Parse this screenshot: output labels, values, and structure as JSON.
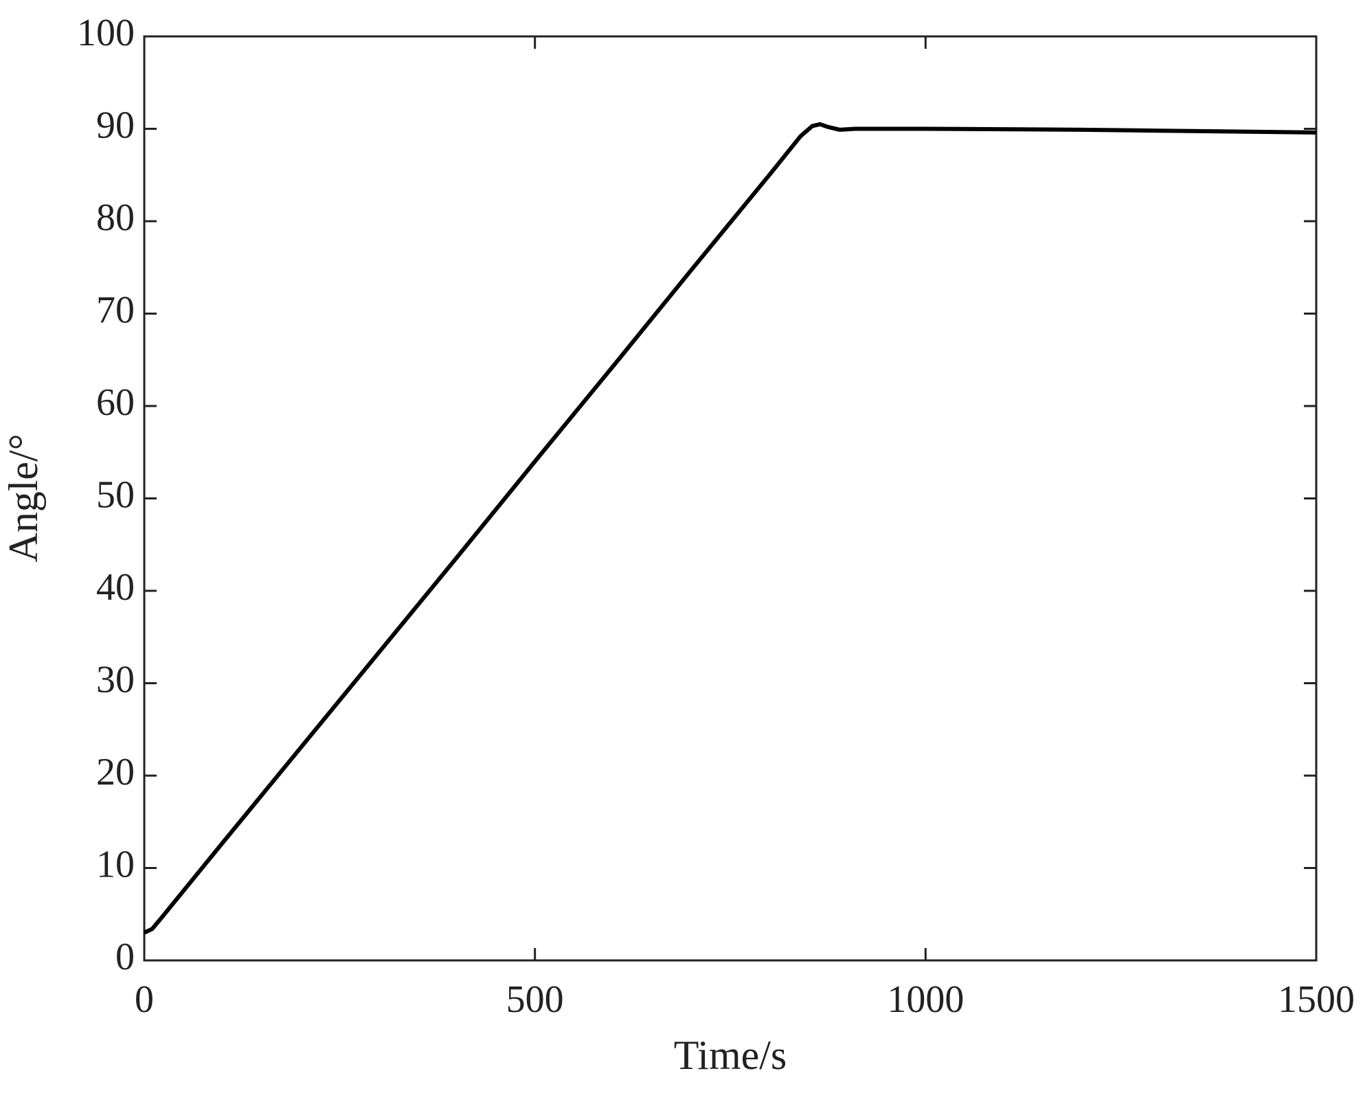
{
  "chart_data": {
    "type": "line",
    "x_label": "Time/s",
    "y_label": "Angle/°",
    "x": [
      0,
      10,
      20,
      100,
      200,
      300,
      400,
      500,
      600,
      700,
      800,
      840,
      855,
      865,
      875,
      890,
      910,
      950,
      1000,
      1200,
      1300,
      1500
    ],
    "series": [
      {
        "color": "#000000",
        "values": [
          3,
          3.4,
          4.4,
          12.7,
          23,
          33.3,
          43.6,
          54,
          64.3,
          74.7,
          85,
          89.2,
          90.3,
          90.5,
          90.2,
          89.9,
          90,
          90,
          90,
          89.9,
          89.8,
          89.6
        ]
      }
    ],
    "xlim": [
      0,
      1500
    ],
    "xticks": [
      0,
      500,
      1000,
      1500
    ],
    "ylim": [
      0,
      100
    ],
    "yticks": [
      0,
      10,
      20,
      30,
      40,
      50,
      60,
      70,
      80,
      90,
      100
    ],
    "grid": false
  }
}
